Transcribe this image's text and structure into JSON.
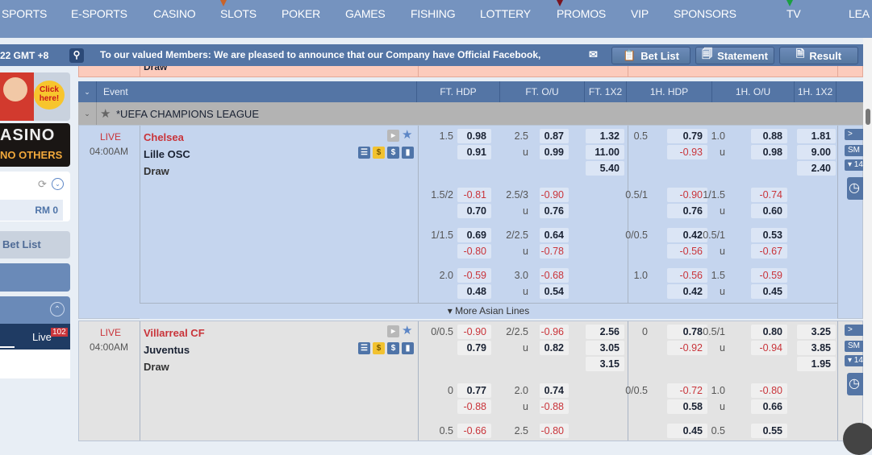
{
  "nav": {
    "items": [
      {
        "label": "SPORTS"
      },
      {
        "label": "E-SPORTS"
      },
      {
        "label": "CASINO"
      },
      {
        "label": "SLOTS",
        "flag": "#c8632a"
      },
      {
        "label": "POKER"
      },
      {
        "label": "GAMES"
      },
      {
        "label": "FISHING"
      },
      {
        "label": "LOTTERY"
      },
      {
        "label": "PROMOS",
        "flag": "#7a1420"
      },
      {
        "label": "VIP"
      },
      {
        "label": "SPONSORS"
      },
      {
        "label": "TV",
        "flag": "#1aa040"
      },
      {
        "label": "LEA"
      }
    ]
  },
  "infobar": {
    "clock": "22 GMT +8",
    "announcement": "To our valued Members: We are pleased to announce that our Company have Official Facebook,",
    "bet_list": "Bet List",
    "statement": "Statement",
    "result": "Result"
  },
  "prev_row": {
    "text": "Draw"
  },
  "sidebar": {
    "banner_text": "Click here!",
    "casino_text": "ASINO",
    "casino_sub": "NO OTHERS",
    "balance": "RM 0",
    "bet_list": "Bet List",
    "live_label": "Live",
    "live_count": "102"
  },
  "header": {
    "event": "Event",
    "cols": [
      "FT. HDP",
      "FT. O/U",
      "FT. 1X2",
      "1H. HDP",
      "1H. O/U",
      "1H. 1X2"
    ]
  },
  "league": {
    "name": "*UEFA CHAMPIONS LEAGUE"
  },
  "more_lines": "▾ More Asian Lines",
  "side_buttons": {
    "next": ">",
    "sm": "SM",
    "count": "▾ 14"
  },
  "colors": {
    "nav": "#7593bf",
    "bar": "#5475a5",
    "live": "#c9343a",
    "row_live": "#c5d5ee",
    "row_alt": "#e3e3e3"
  },
  "matches": [
    {
      "status": "LIVE",
      "time": "04:00AM",
      "home": "Chelsea",
      "away": "Lille OSC",
      "draw": "Draw",
      "lines": [
        {
          "ft_hdp": [
            "1.5",
            "0.98",
            "0.91"
          ],
          "ft_ou": [
            "2.5",
            "0.87",
            "0.99"
          ],
          "ft_1x2": [
            "1.32",
            "11.00",
            "5.40"
          ],
          "h1_hdp": [
            "0.5",
            "0.79",
            "-0.93"
          ],
          "h1_ou": [
            "1.0",
            "0.88",
            "0.98"
          ],
          "h1_1x2": [
            "1.81",
            "9.00",
            "2.40"
          ]
        },
        {
          "ft_hdp": [
            "1.5/2",
            "-0.81",
            "0.70"
          ],
          "ft_ou": [
            "2.5/3",
            "-0.90",
            "0.76"
          ],
          "h1_hdp": [
            "0.5/1",
            "-0.90",
            "0.76"
          ],
          "h1_ou": [
            "1/1.5",
            "-0.74",
            "0.60"
          ]
        },
        {
          "ft_hdp": [
            "1/1.5",
            "0.69",
            "-0.80"
          ],
          "ft_ou": [
            "2/2.5",
            "0.64",
            "-0.78"
          ],
          "h1_hdp": [
            "0/0.5",
            "0.42",
            "-0.56"
          ],
          "h1_ou": [
            "0.5/1",
            "0.53",
            "-0.67"
          ]
        },
        {
          "ft_hdp": [
            "2.0",
            "-0.59",
            "0.48"
          ],
          "ft_ou": [
            "3.0",
            "-0.68",
            "0.54"
          ],
          "h1_hdp": [
            "1.0",
            "-0.56",
            "0.42"
          ],
          "h1_ou": [
            "1.5",
            "-0.59",
            "0.45"
          ]
        }
      ]
    },
    {
      "status": "LIVE",
      "time": "04:00AM",
      "home": "Villarreal CF",
      "away": "Juventus",
      "draw": "Draw",
      "lines": [
        {
          "ft_hdp": [
            "0/0.5",
            "-0.90",
            "0.79"
          ],
          "ft_ou": [
            "2/2.5",
            "-0.96",
            "0.82"
          ],
          "ft_1x2": [
            "2.56",
            "3.05",
            "3.15"
          ],
          "h1_hdp": [
            "0",
            "0.78",
            "-0.92"
          ],
          "h1_ou": [
            "0.5/1",
            "0.80",
            "-0.94"
          ],
          "h1_1x2": [
            "3.25",
            "3.85",
            "1.95"
          ]
        },
        {
          "ft_hdp": [
            "0",
            "0.77",
            "-0.88"
          ],
          "ft_ou": [
            "2.0",
            "0.74",
            "-0.88"
          ],
          "h1_hdp": [
            "0/0.5",
            "-0.72",
            "0.58"
          ],
          "h1_ou": [
            "1.0",
            "-0.80",
            "0.66"
          ]
        },
        {
          "ft_hdp": [
            "0.5",
            "-0.66",
            ""
          ],
          "ft_ou": [
            "2.5",
            "-0.80",
            ""
          ],
          "h1_hdp": [
            "",
            "0.45",
            ""
          ],
          "h1_ou": [
            "0.5",
            "0.55",
            ""
          ]
        }
      ]
    }
  ],
  "ou_under": "u"
}
